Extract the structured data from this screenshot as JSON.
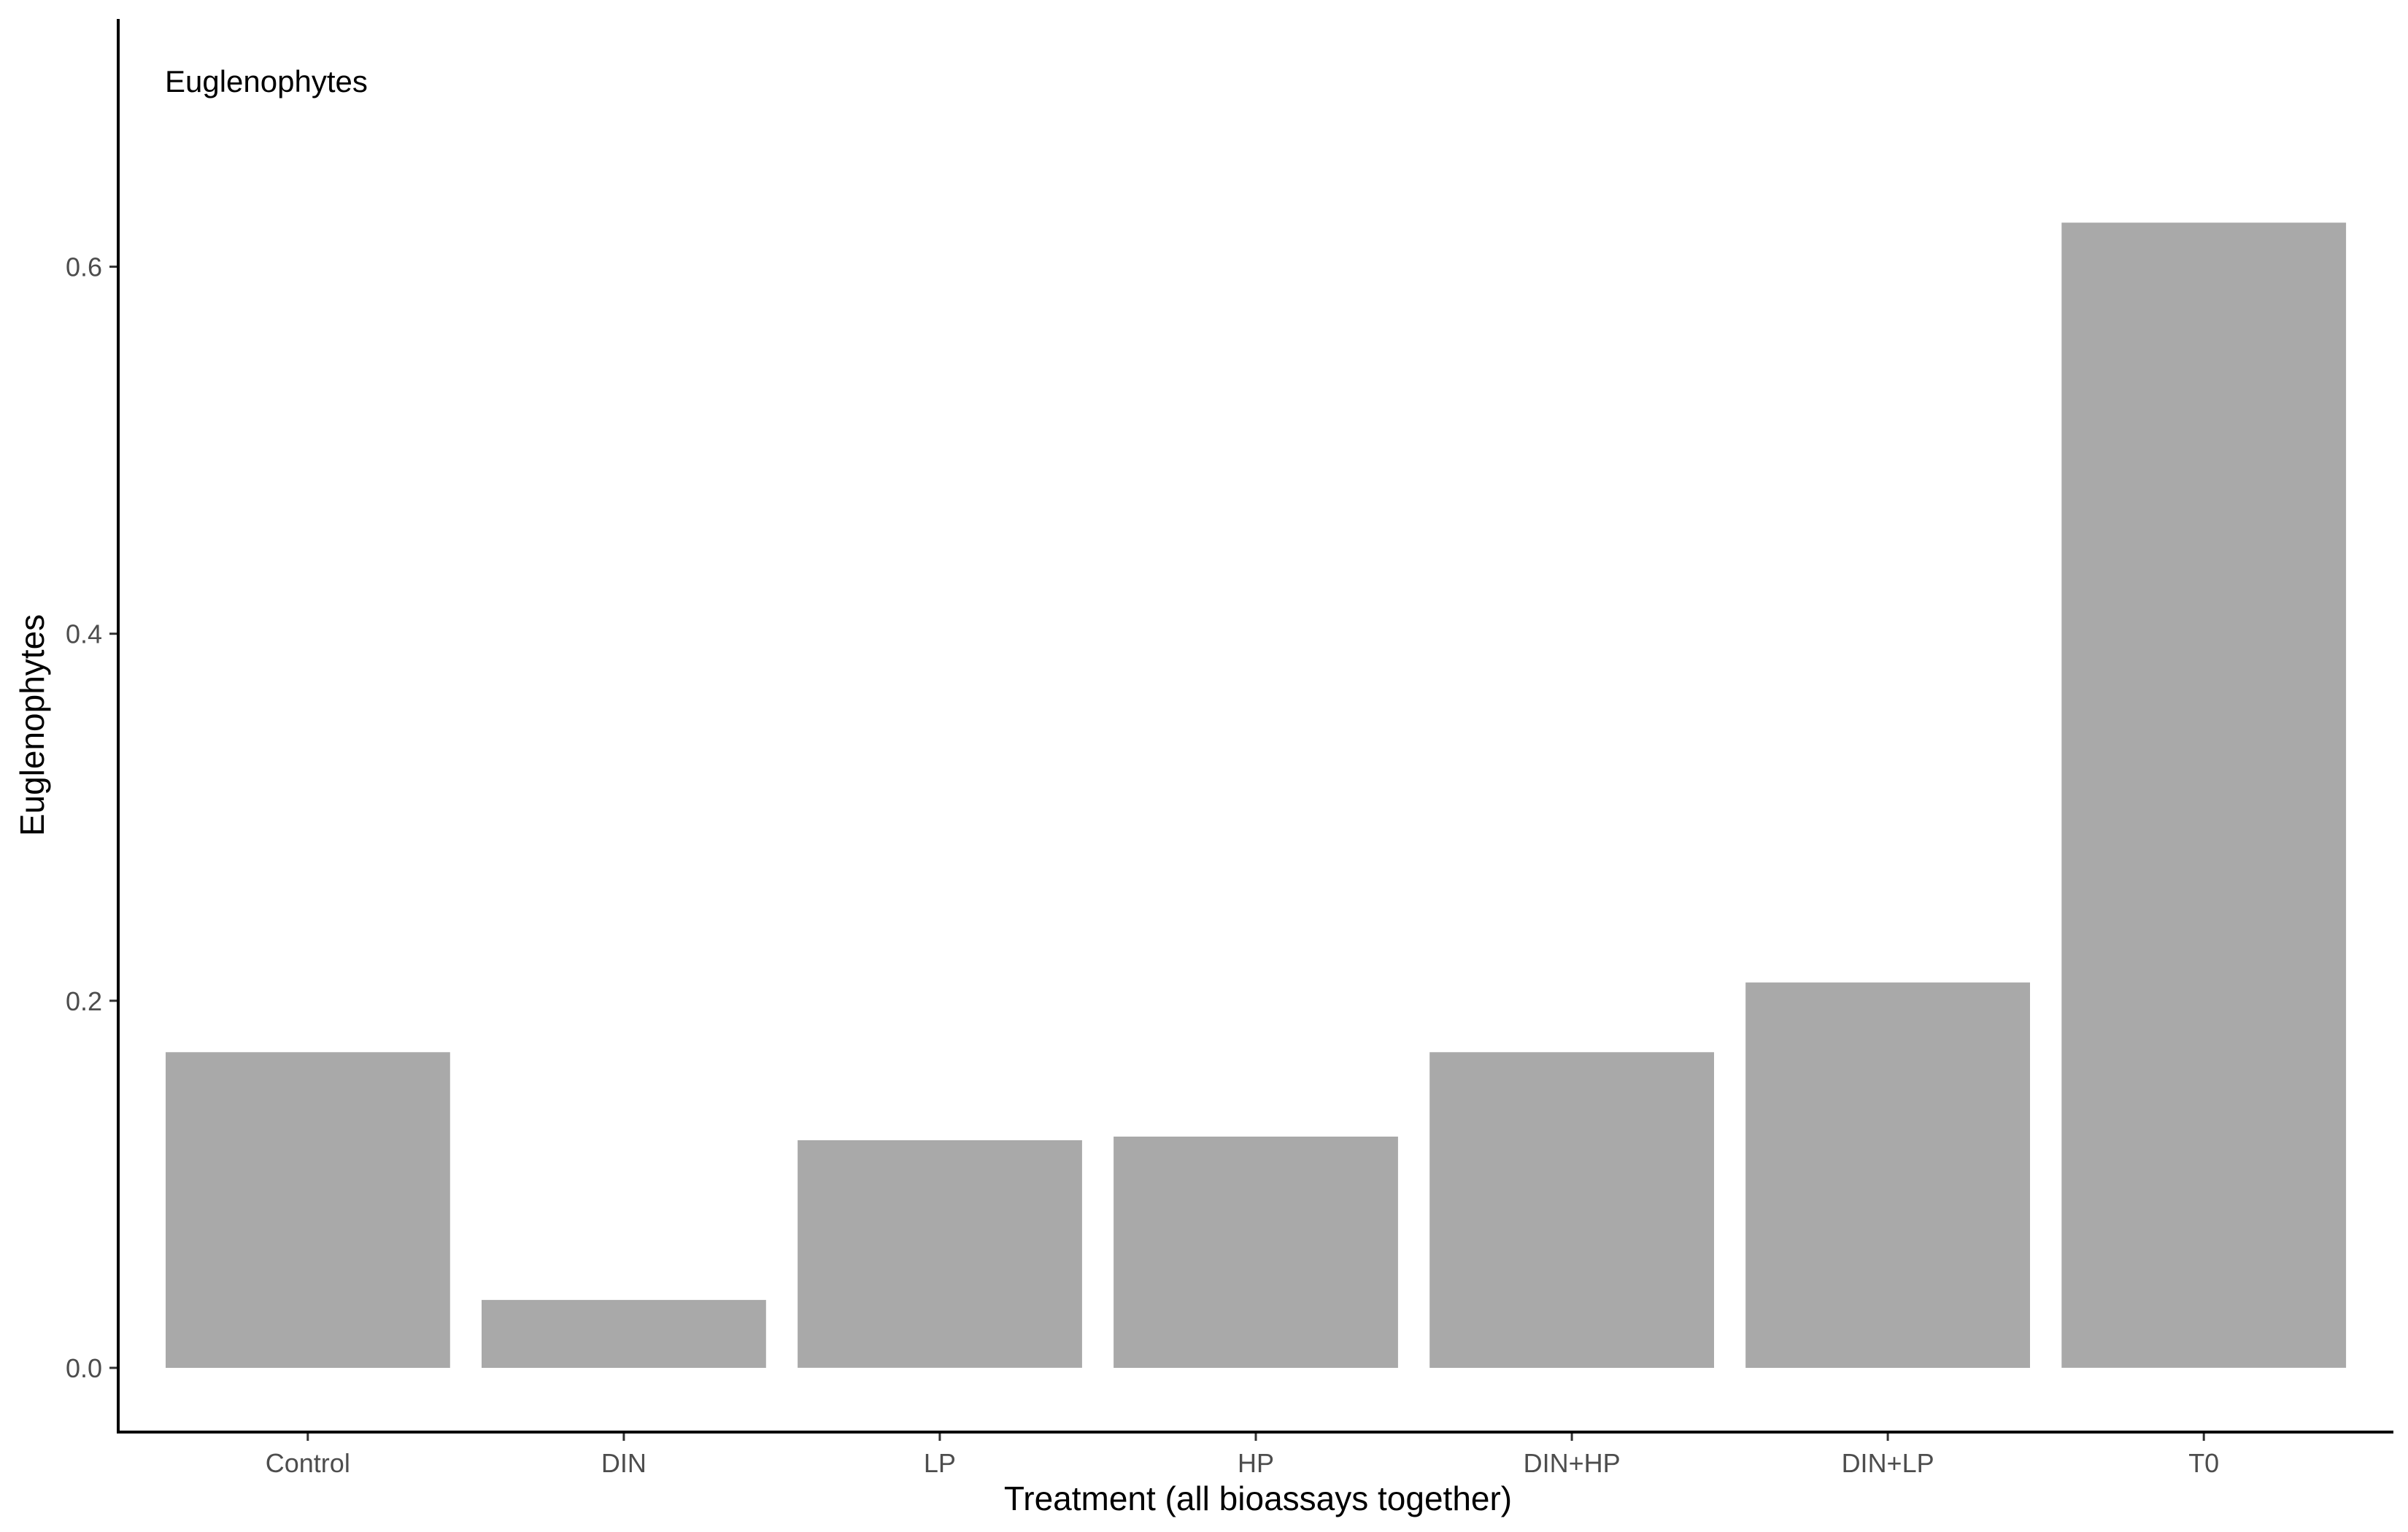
{
  "chart_data": {
    "type": "bar",
    "panel_label": "Euglenophytes",
    "xlabel": "Treatment (all bioassays together)",
    "ylabel": "Euglenophytes",
    "categories": [
      "Control",
      "DIN",
      "LP",
      "HP",
      "DIN+HP",
      "DIN+LP",
      "T0"
    ],
    "values": [
      0.172,
      0.037,
      0.124,
      0.126,
      0.172,
      0.21,
      0.624
    ],
    "ylim": [
      -0.035,
      0.735
    ],
    "yticks": [
      0.0,
      0.2,
      0.4,
      0.6
    ],
    "ytick_labels": [
      "0.0",
      "0.2",
      "0.4",
      "0.6"
    ],
    "grid": false,
    "legend": "none",
    "bar_color": "#a9a9a9"
  }
}
